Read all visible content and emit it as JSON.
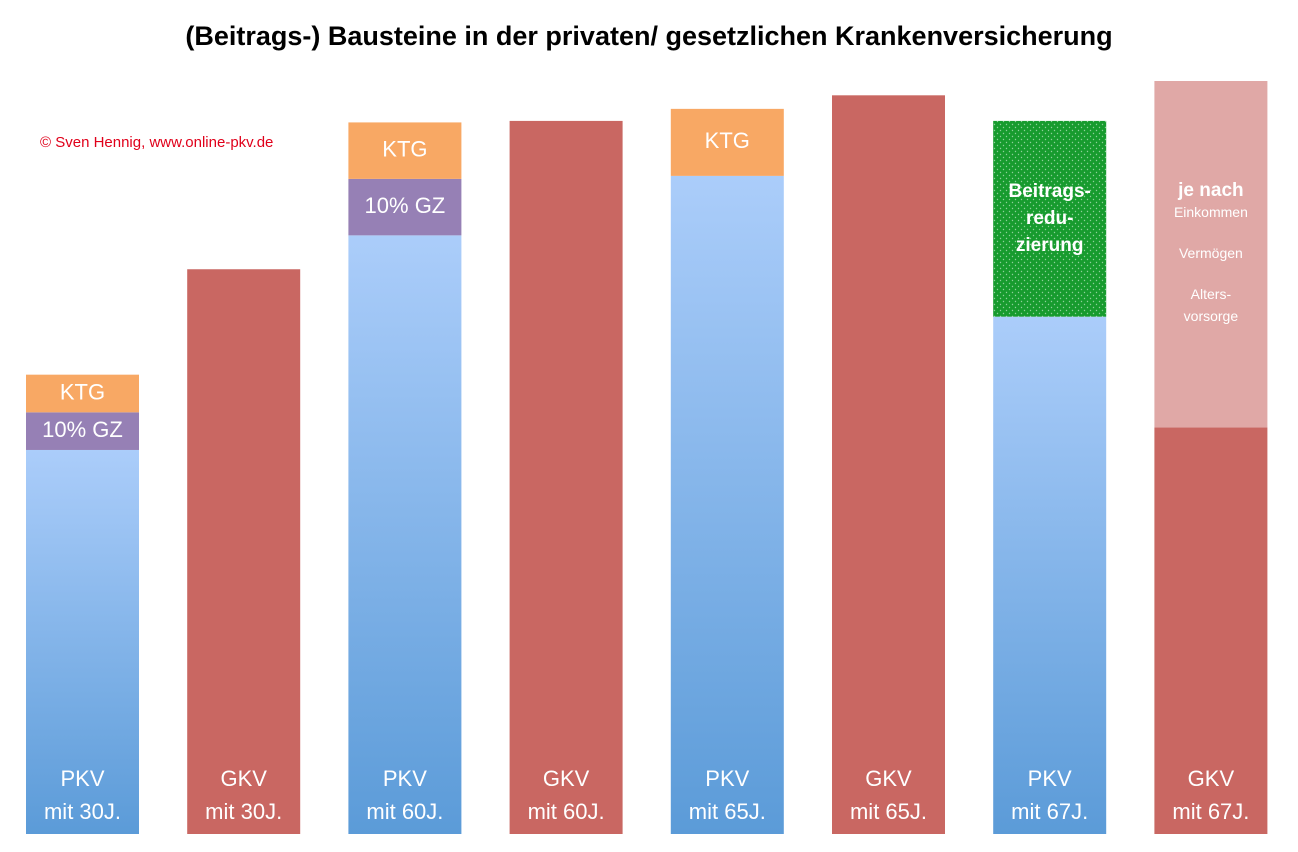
{
  "chart_data": {
    "type": "stacked-bar",
    "title": "(Beitrags-) Bausteine in der privaten/ gesetzlichen Krankenversicherung",
    "credit": "© Sven Hennig, www.online-pkv.de",
    "ylim": [
      0,
      100
    ],
    "bars": [
      {
        "label": [
          "PKV",
          "mit 30J."
        ],
        "segments": [
          {
            "value": 51,
            "gradient": [
              "#5b9bd8",
              "#abcdfa"
            ]
          },
          {
            "value": 5,
            "color": "#9680b5",
            "label": [
              [
                "10% GZ"
              ]
            ]
          },
          {
            "value": 5,
            "color": "#f8a864",
            "label": [
              [
                "KTG"
              ]
            ]
          }
        ]
      },
      {
        "label": [
          "GKV",
          "mit 30J."
        ],
        "segments": [
          {
            "value": 75,
            "color": "#c96762"
          }
        ]
      },
      {
        "label": [
          "PKV",
          "mit 60J."
        ],
        "segments": [
          {
            "value": 79.5,
            "gradient": [
              "#5b9bd8",
              "#abcdfa"
            ]
          },
          {
            "value": 7.5,
            "color": "#9680b5",
            "label": [
              [
                "10% GZ"
              ]
            ]
          },
          {
            "value": 7.5,
            "color": "#f8a864",
            "label": [
              [
                "KTG"
              ]
            ]
          }
        ]
      },
      {
        "label": [
          "GKV",
          "mit 60J."
        ],
        "segments": [
          {
            "value": 94.7,
            "color": "#c96762"
          }
        ]
      },
      {
        "label": [
          "PKV",
          "mit 65J."
        ],
        "segments": [
          {
            "value": 87.4,
            "gradient": [
              "#5b9bd8",
              "#abcdfa"
            ]
          },
          {
            "value": 8.9,
            "color": "#f8a864",
            "label": [
              [
                "KTG"
              ]
            ]
          }
        ]
      },
      {
        "label": [
          "GKV",
          "mit 65J."
        ],
        "segments": [
          {
            "value": 98.1,
            "color": "#c96762"
          }
        ]
      },
      {
        "label": [
          "PKV",
          "mit 67J."
        ],
        "segments": [
          {
            "value": 68.7,
            "gradient": [
              "#5b9bd8",
              "#abcdfa"
            ]
          },
          {
            "value": 26,
            "color": "#179b2e",
            "dotted": true,
            "label": [
              [
                "Beitrags-",
                "redu-",
                "zierung"
              ]
            ]
          }
        ]
      },
      {
        "label": [
          "GKV",
          "mit 67J."
        ],
        "segments": [
          {
            "value": 54,
            "color": "#c96762"
          },
          {
            "value": 46,
            "color": "#e0a8a6",
            "label": [
              [
                "je nach",
                "Einkommen"
              ],
              [
                "Vermögen"
              ],
              [
                "Alters-",
                "vorsorge"
              ]
            ]
          }
        ]
      }
    ]
  }
}
